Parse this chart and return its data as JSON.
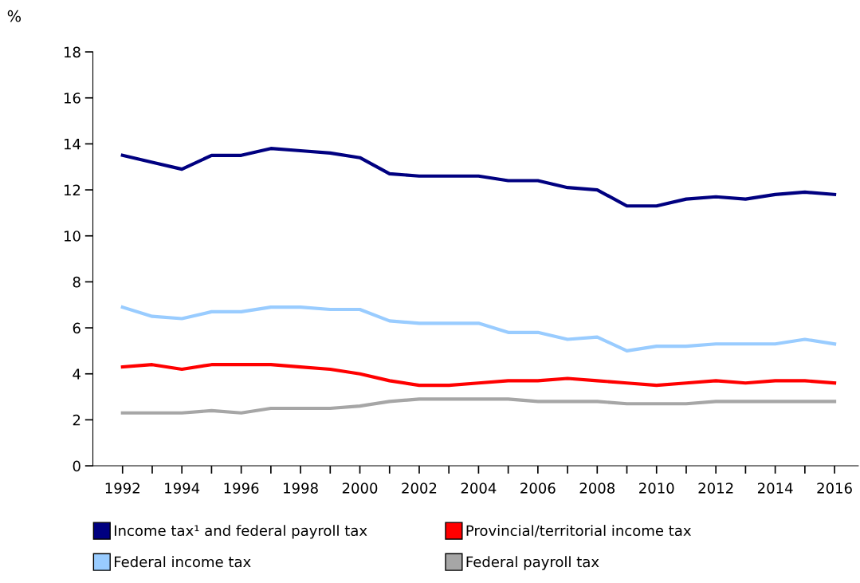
{
  "chart_data": {
    "type": "line",
    "ylabel": "%",
    "x": [
      1992,
      1993,
      1994,
      1995,
      1996,
      1997,
      1998,
      1999,
      2000,
      2001,
      2002,
      2003,
      2004,
      2005,
      2006,
      2007,
      2008,
      2009,
      2010,
      2011,
      2012,
      2013,
      2014,
      2015,
      2016
    ],
    "series": [
      {
        "name": "Income tax¹ and federal payroll tax",
        "color": "#000080",
        "values": [
          13.5,
          13.2,
          12.9,
          13.5,
          13.5,
          13.8,
          13.7,
          13.6,
          13.4,
          12.7,
          12.6,
          12.6,
          12.6,
          12.4,
          12.4,
          12.1,
          12.0,
          11.3,
          11.3,
          11.6,
          11.7,
          11.6,
          11.8,
          11.9,
          11.8
        ]
      },
      {
        "name": "Federal income tax",
        "color": "#99ccff",
        "values": [
          6.9,
          6.5,
          6.4,
          6.7,
          6.7,
          6.9,
          6.9,
          6.8,
          6.8,
          6.3,
          6.2,
          6.2,
          6.2,
          5.8,
          5.8,
          5.5,
          5.6,
          5.0,
          5.2,
          5.2,
          5.3,
          5.3,
          5.3,
          5.5,
          5.3
        ]
      },
      {
        "name": "Provincial/territorial income tax",
        "color": "#ff0000",
        "values": [
          4.3,
          4.4,
          4.2,
          4.4,
          4.4,
          4.4,
          4.3,
          4.2,
          4.0,
          3.7,
          3.5,
          3.5,
          3.6,
          3.7,
          3.7,
          3.8,
          3.7,
          3.6,
          3.5,
          3.6,
          3.7,
          3.6,
          3.7,
          3.7,
          3.6
        ]
      },
      {
        "name": "Federal payroll tax",
        "color": "#a6a6a6",
        "values": [
          2.3,
          2.3,
          2.3,
          2.4,
          2.3,
          2.5,
          2.5,
          2.5,
          2.6,
          2.8,
          2.9,
          2.9,
          2.9,
          2.9,
          2.8,
          2.8,
          2.8,
          2.7,
          2.7,
          2.7,
          2.8,
          2.8,
          2.8,
          2.8,
          2.8
        ]
      }
    ],
    "xlim": [
      1991,
      2016.8
    ],
    "xticks": [
      1992,
      {
        "value": 1993,
        "label": null
      },
      1994,
      {
        "value": 1995,
        "label": null
      },
      1996,
      {
        "value": 1997,
        "label": null
      },
      1998,
      {
        "value": 1999,
        "label": null
      },
      2000,
      {
        "value": 2001,
        "label": null
      },
      2002,
      {
        "value": 2003,
        "label": null
      },
      2004,
      {
        "value": 2005,
        "label": null
      },
      2006,
      {
        "value": 2007,
        "label": null
      },
      2008,
      {
        "value": 2009,
        "label": null
      },
      2010,
      {
        "value": 2011,
        "label": null
      },
      2012,
      {
        "value": 2013,
        "label": null
      },
      2014,
      {
        "value": 2015,
        "label": null
      },
      2016
    ],
    "ylim": [
      0,
      18
    ],
    "yticks": [
      0,
      2,
      4,
      6,
      8,
      10,
      12,
      14,
      16,
      18
    ],
    "grid": false,
    "legend": "bottom",
    "marker": "none",
    "line_style": "solid"
  }
}
